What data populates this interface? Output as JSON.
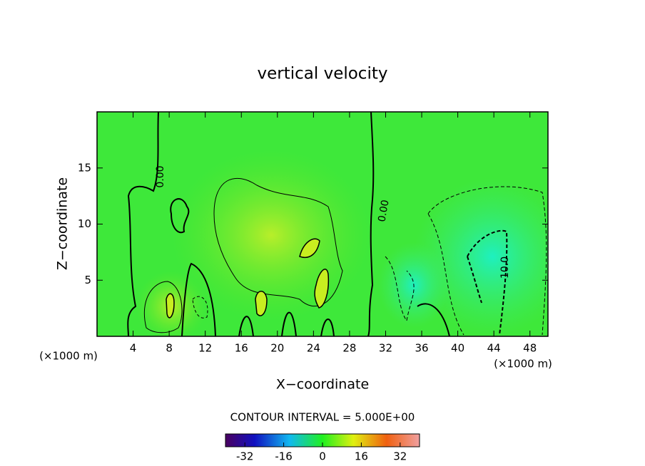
{
  "chart_data": {
    "type": "contour",
    "title": "vertical velocity",
    "x_label": "X−coordinate",
    "y_label": "Z−coordinate",
    "x_unit": "(×1000 m)",
    "y_unit": "(×1000 m)",
    "xlim": [
      0,
      50
    ],
    "xticks": [
      4,
      8,
      12,
      16,
      20,
      24,
      28,
      32,
      36,
      40,
      44,
      48
    ],
    "ylim": [
      0,
      20
    ],
    "yticks": [
      5,
      10,
      15
    ],
    "contour_labels": [
      "0.00",
      "0.00",
      "-10.0"
    ],
    "contour_interval": "CONTOUR INTERVAL = 5.000E+00",
    "colorbar": {
      "lim": [
        -40,
        40
      ],
      "ticks": [
        -32,
        -16,
        0,
        16,
        32
      ]
    }
  }
}
